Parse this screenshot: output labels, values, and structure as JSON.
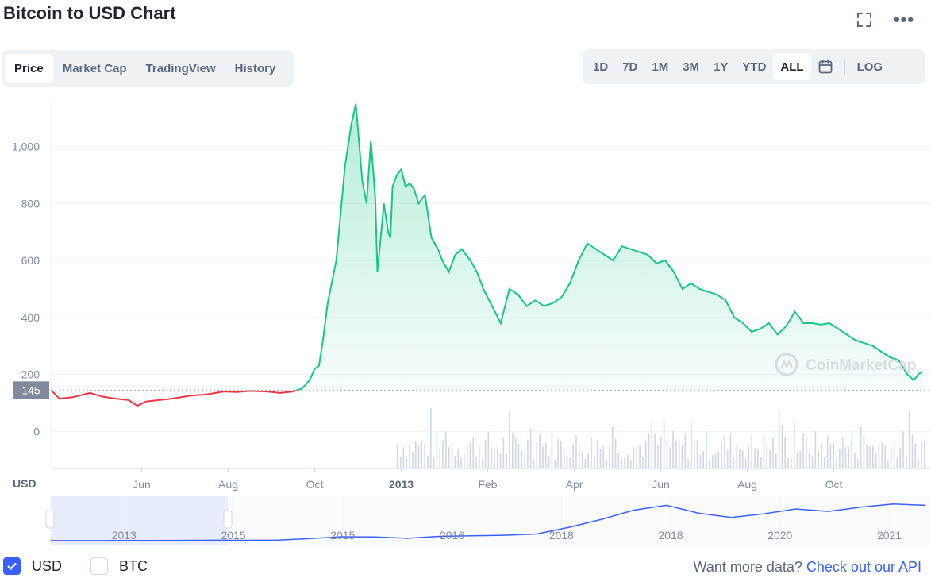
{
  "header": {
    "title": "Bitcoin to USD Chart",
    "fullscreen_icon": "fullscreen-icon",
    "more_icon": "more-horizontal-icon",
    "more_label": "•••"
  },
  "tabs": [
    {
      "label": "Price",
      "active": true
    },
    {
      "label": "Market Cap",
      "active": false
    },
    {
      "label": "TradingView",
      "active": false
    },
    {
      "label": "History",
      "active": false
    }
  ],
  "ranges": [
    {
      "label": "1D",
      "active": false
    },
    {
      "label": "7D",
      "active": false
    },
    {
      "label": "1M",
      "active": false
    },
    {
      "label": "3M",
      "active": false
    },
    {
      "label": "1Y",
      "active": false
    },
    {
      "label": "YTD",
      "active": false
    },
    {
      "label": "ALL",
      "active": true
    }
  ],
  "calendar_icon": "calendar-icon",
  "log_label": "LOG",
  "colors": {
    "up": "#16c784",
    "down": "#ea3943",
    "accent": "#3861fb",
    "volume": "#cfd6e4"
  },
  "chart_data": {
    "type": "area",
    "currency_label": "USD",
    "current_price_label": "145",
    "reference_price": 145,
    "y_ticks": [
      "1,000",
      "800",
      "600",
      "400",
      "200",
      "0"
    ],
    "y_tick_values": [
      1000,
      800,
      600,
      400,
      200,
      0
    ],
    "ylim": [
      -130,
      1180
    ],
    "x_ticks": [
      {
        "label": "Jun",
        "t": 5.1,
        "bold": false
      },
      {
        "label": "Aug",
        "t": 7.1,
        "bold": false
      },
      {
        "label": "Oct",
        "t": 9.1,
        "bold": false
      },
      {
        "label": "2013",
        "t": 11.1,
        "bold": true
      },
      {
        "label": "Feb",
        "t": 13.1,
        "bold": false
      },
      {
        "label": "Apr",
        "t": 15.1,
        "bold": false
      },
      {
        "label": "Jun",
        "t": 17.1,
        "bold": false
      },
      {
        "label": "Aug",
        "t": 19.1,
        "bold": false
      },
      {
        "label": "Oct",
        "t": 21.1,
        "bold": false
      }
    ],
    "xlim": [
      3.0,
      23.2
    ],
    "series": [
      {
        "x": [
          3.0,
          3.1,
          3.2,
          3.5,
          3.9,
          4.2,
          4.5,
          4.8,
          5.0,
          5.2,
          5.5,
          5.8,
          6.2,
          6.6,
          7.0,
          7.3,
          7.6,
          8.0,
          8.3,
          8.6,
          8.8,
          8.9,
          9.0,
          9.1,
          9.2,
          9.3,
          9.4,
          9.6,
          9.8,
          9.95,
          10.05,
          10.2,
          10.3,
          10.4,
          10.5,
          10.55,
          10.65,
          10.7,
          10.8,
          10.85,
          10.9,
          11.0,
          11.1,
          11.2,
          11.3,
          11.4,
          11.5,
          11.65,
          11.8,
          11.95,
          12.05,
          12.2,
          12.35,
          12.5,
          12.7,
          12.85,
          13.0,
          13.2,
          13.4,
          13.6,
          13.8,
          14.0,
          14.2,
          14.4,
          14.6,
          14.8,
          15.0,
          15.2,
          15.4,
          15.6,
          15.8,
          16.0,
          16.2,
          16.4,
          16.6,
          16.8,
          17.0,
          17.2,
          17.4,
          17.6,
          17.8,
          18.0,
          18.2,
          18.4,
          18.6,
          18.8,
          19.0,
          19.2,
          19.4,
          19.6,
          19.8,
          20.0,
          20.2,
          20.4,
          20.6,
          20.8,
          21.0,
          21.2,
          21.4,
          21.6,
          21.8,
          22.0,
          22.2,
          22.4,
          22.6,
          22.8,
          22.95,
          23.05,
          23.15
        ],
        "y": [
          145,
          130,
          115,
          120,
          135,
          122,
          115,
          110,
          90,
          105,
          110,
          115,
          125,
          130,
          140,
          138,
          142,
          140,
          135,
          140,
          150,
          165,
          185,
          220,
          230,
          330,
          450,
          600,
          930,
          1080,
          1150,
          880,
          800,
          1020,
          820,
          560,
          720,
          800,
          700,
          680,
          860,
          900,
          920,
          860,
          870,
          850,
          800,
          830,
          680,
          640,
          600,
          560,
          620,
          640,
          600,
          560,
          500,
          440,
          380,
          500,
          480,
          440,
          460,
          440,
          450,
          470,
          520,
          600,
          660,
          640,
          620,
          600,
          650,
          640,
          630,
          620,
          590,
          600,
          560,
          500,
          520,
          500,
          490,
          480,
          460,
          400,
          380,
          350,
          360,
          380,
          340,
          370,
          420,
          380,
          380,
          375,
          380,
          360,
          340,
          320,
          310,
          300,
          280,
          260,
          250,
          200,
          180,
          200,
          210
        ]
      }
    ]
  },
  "navigator": {
    "labels": [
      "2013",
      "2015",
      "2015",
      "2016",
      "2018",
      "2018",
      "2020",
      "2021"
    ],
    "ylim": [
      0,
      65000
    ],
    "values": [
      150,
      150,
      200,
      300,
      500,
      800,
      600,
      900,
      3500,
      6500,
      6200,
      4000,
      7200,
      8000,
      9000,
      11000,
      22000,
      35000,
      50000,
      58000,
      45000,
      38000,
      44000,
      52000,
      48000,
      55000,
      60000,
      58000
    ]
  },
  "legend": {
    "items": [
      {
        "label": "USD",
        "checked": true
      },
      {
        "label": "BTC",
        "checked": false
      }
    ]
  },
  "api": {
    "prefix": "Want more data? ",
    "link": "Check out our API"
  },
  "watermark": "CoinMarketCap"
}
